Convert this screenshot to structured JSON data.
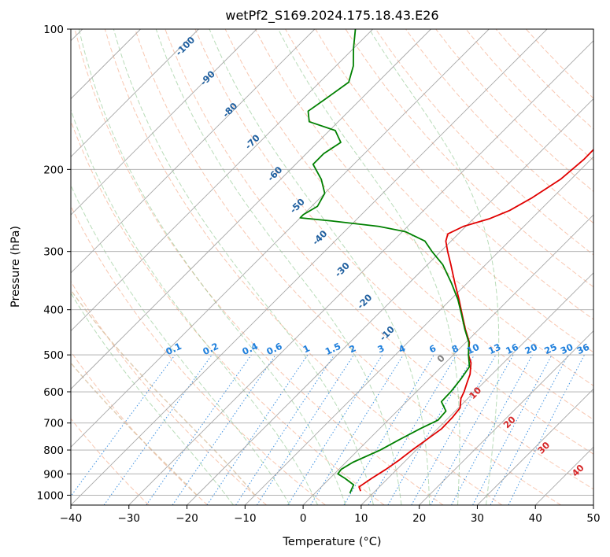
{
  "chart_data": {
    "type": "skew-t",
    "title": "wetPf2_S169.2024.175.18.43.E26",
    "xlabel": "Temperature (°C)",
    "ylabel": "Pressure (hPa)",
    "xlim": [
      -40,
      50
    ],
    "ylim": [
      1050,
      100
    ],
    "y_scale": "log",
    "grid": true,
    "x_ticks": [
      -40,
      -30,
      -20,
      -10,
      0,
      10,
      20,
      30,
      40,
      50
    ],
    "y_ticks": [
      100,
      200,
      300,
      400,
      500,
      600,
      700,
      800,
      900,
      1000
    ],
    "isotherm_spacing_c": 10,
    "dry_adiabats_c": [
      -30,
      -20,
      -10,
      0,
      10,
      20,
      30,
      40,
      50,
      60,
      70,
      80,
      90,
      100,
      110,
      120,
      130,
      140,
      150,
      160,
      170
    ],
    "moist_adiabats_c": [
      -15,
      -5,
      0,
      5,
      10,
      15,
      20,
      25,
      30
    ],
    "dry_adiabat_labels": [
      "-100",
      "-90",
      "-80",
      "-70",
      "-60",
      "-50",
      "-40",
      "-30",
      "-20",
      "-10",
      "0",
      "10",
      "20",
      "30",
      "40"
    ],
    "mixing_ratio_labels": [
      "0.1",
      "0.2",
      "0.4",
      "0.6",
      "1",
      "1.5",
      "2",
      "3",
      "4",
      "6",
      "8",
      "10",
      "13",
      "16",
      "20",
      "25",
      "30",
      "36"
    ],
    "series": [
      {
        "name": "Temperature",
        "color": "#e00000",
        "points": [
          [
            980,
            7.5
          ],
          [
            960,
            6.5
          ],
          [
            920,
            7.2
          ],
          [
            880,
            8.1
          ],
          [
            840,
            8.8
          ],
          [
            800,
            9.3
          ],
          [
            760,
            10
          ],
          [
            720,
            10.7
          ],
          [
            680,
            10.6
          ],
          [
            650,
            10.3
          ],
          [
            620,
            8.8
          ],
          [
            600,
            8.2
          ],
          [
            575,
            7.2
          ],
          [
            550,
            6.2
          ],
          [
            520,
            4.4
          ],
          [
            500,
            2.6
          ],
          [
            470,
            0.6
          ],
          [
            440,
            -2.4
          ],
          [
            410,
            -5.4
          ],
          [
            380,
            -8.6
          ],
          [
            350,
            -12.2
          ],
          [
            320,
            -16.0
          ],
          [
            300,
            -18.8
          ],
          [
            285,
            -20.9
          ],
          [
            275,
            -21.8
          ],
          [
            265,
            -20.4
          ],
          [
            255,
            -17.2
          ],
          [
            245,
            -15.2
          ],
          [
            230,
            -13.5
          ],
          [
            210,
            -11.8
          ],
          [
            190,
            -11.2
          ],
          [
            170,
            -11.3
          ],
          [
            150,
            -11.5
          ],
          [
            130,
            -12.2
          ],
          [
            120,
            -12.5
          ],
          [
            110,
            -14.0
          ],
          [
            100,
            -15.7
          ]
        ]
      },
      {
        "name": "Dewpoint",
        "color": "#008000",
        "points": [
          [
            990,
            6.0
          ],
          [
            950,
            5.2
          ],
          [
            920,
            2.6
          ],
          [
            900,
            0.6
          ],
          [
            880,
            0.4
          ],
          [
            850,
            1.2
          ],
          [
            800,
            3.8
          ],
          [
            760,
            5.3
          ],
          [
            720,
            7.0
          ],
          [
            690,
            8.6
          ],
          [
            660,
            8.4
          ],
          [
            630,
            6.0
          ],
          [
            600,
            5.9
          ],
          [
            560,
            5.4
          ],
          [
            530,
            4.8
          ],
          [
            500,
            2.6
          ],
          [
            470,
            0.5
          ],
          [
            440,
            -2.5
          ],
          [
            410,
            -5.5
          ],
          [
            380,
            -8.8
          ],
          [
            350,
            -12.8
          ],
          [
            320,
            -17.4
          ],
          [
            300,
            -21.5
          ],
          [
            285,
            -24.5
          ],
          [
            272,
            -29.5
          ],
          [
            265,
            -35.0
          ],
          [
            258,
            -44.0
          ],
          [
            254,
            -50.0
          ],
          [
            250,
            -50.0
          ],
          [
            240,
            -49.0
          ],
          [
            225,
            -50.0
          ],
          [
            210,
            -53.0
          ],
          [
            195,
            -57.0
          ],
          [
            185,
            -57.0
          ],
          [
            175,
            -56.0
          ],
          [
            165,
            -59.0
          ],
          [
            158,
            -65.0
          ],
          [
            150,
            -67.0
          ],
          [
            140,
            -66.0
          ],
          [
            130,
            -65.0
          ],
          [
            120,
            -67.0
          ],
          [
            110,
            -70.0
          ],
          [
            100,
            -73.0
          ]
        ]
      }
    ]
  }
}
